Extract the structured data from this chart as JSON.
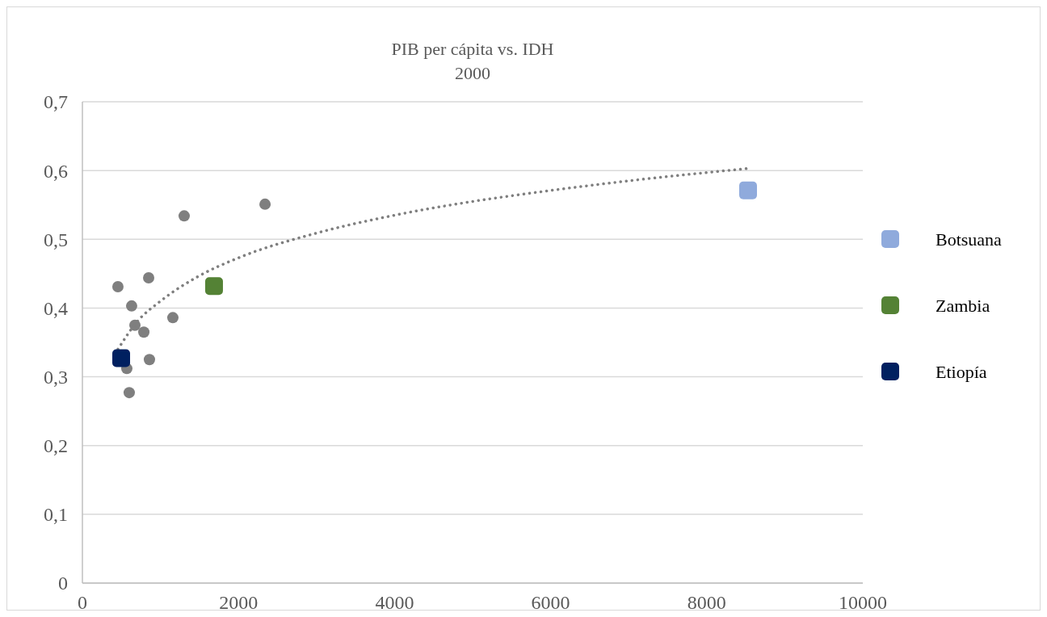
{
  "chart_data": {
    "type": "scatter",
    "title": "PIB per cápita vs. IDH",
    "subtitle": "2000",
    "xlim": [
      0,
      10000
    ],
    "xticks": [
      0,
      2000,
      4000,
      6000,
      8000,
      10000
    ],
    "ylim": [
      0,
      0.7
    ],
    "yticks": [
      0,
      {
        "value": 0.1,
        "label": "0,1"
      },
      {
        "value": 0.2,
        "label": "0,2"
      },
      {
        "value": 0.3,
        "label": "0,3"
      },
      {
        "value": 0.4,
        "label": "0,4"
      },
      {
        "value": 0.5,
        "label": "0,5"
      },
      {
        "value": 0.6,
        "label": "0,6"
      },
      {
        "value": 0.7,
        "label": "0,7"
      }
    ],
    "grid": "y",
    "legend": "right",
    "marker": "circle",
    "series": [
      {
        "color": "#7f7f7f",
        "x": [
          455,
          1304,
          2340,
          849,
          631,
          673,
          787,
          1159,
          859,
          569,
          600
        ],
        "values": [
          0.431,
          0.534,
          0.551,
          0.444,
          0.403,
          0.375,
          0.365,
          0.386,
          0.325,
          0.312,
          0.277
        ]
      },
      {
        "type": "line",
        "line_style": "dotted",
        "marker": "none",
        "color": "#7f7f7f",
        "x": [
          455,
          700,
          1000,
          1500,
          2000,
          3000,
          4000,
          5000,
          6000,
          7000,
          8530
        ],
        "values": [
          0.34,
          0.38,
          0.41,
          0.447,
          0.473,
          0.509,
          0.535,
          0.555,
          0.571,
          0.585,
          0.603
        ]
      },
      {
        "name": "Botsuana",
        "marker": "square",
        "color": "#8faadc",
        "x": [
          8530
        ],
        "values": [
          0.571
        ]
      },
      {
        "name": "Zambia",
        "marker": "square",
        "color": "#548235",
        "x": [
          1687
        ],
        "values": [
          0.432
        ]
      },
      {
        "name": "Etiopía",
        "marker": "square",
        "color": "#002060",
        "x": [
          497
        ],
        "values": [
          0.327
        ]
      }
    ]
  }
}
